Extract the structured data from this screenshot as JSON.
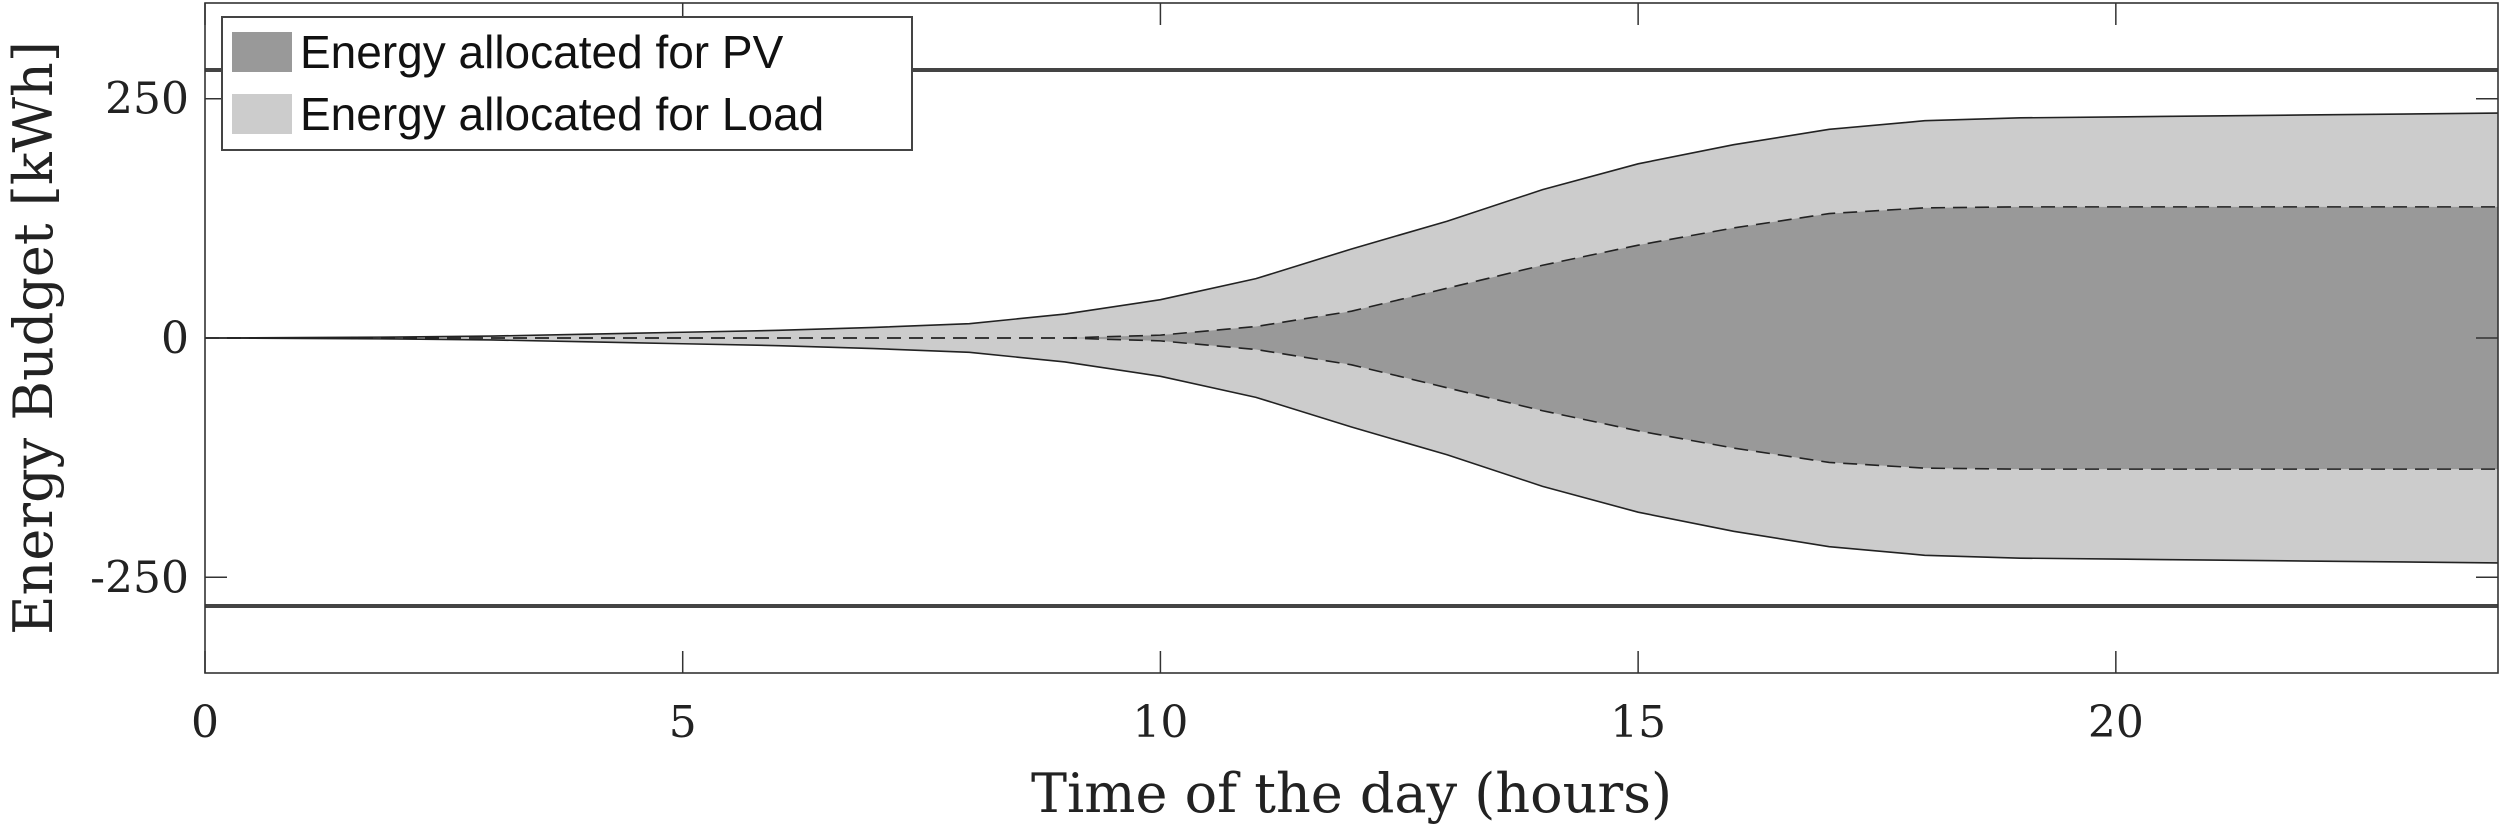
{
  "chart_data": {
    "type": "area",
    "xlabel": "Time of the day (hours)",
    "ylabel": "Energy Budget [kWh]",
    "xlim": [
      0,
      24
    ],
    "ylim": [
      -350,
      350
    ],
    "xticks": [
      0,
      5,
      10,
      15,
      20
    ],
    "yticks": [
      -250,
      0,
      250
    ],
    "ytick_labels": [
      "-250",
      "0",
      "250"
    ],
    "legend_position": "top-left",
    "limit_lines": [
      280,
      -280
    ],
    "x": [
      0,
      1,
      2,
      3,
      4,
      5,
      6,
      7,
      8,
      9,
      10,
      11,
      12,
      13,
      14,
      15,
      16,
      17,
      18,
      19,
      20,
      21,
      22,
      23,
      24
    ],
    "series": [
      {
        "name": "Energy allocated for PV",
        "color": "#999999",
        "upper": [
          0,
          0,
          0,
          0,
          0,
          0,
          0,
          0,
          0,
          0,
          3,
          12,
          28,
          52,
          76,
          97,
          115,
          130,
          136,
          137,
          137,
          137,
          137,
          137,
          137
        ]
      },
      {
        "name": "Energy allocated for Load",
        "color": "#cccccc",
        "upper": [
          0,
          0.5,
          1,
          2,
          4,
          6,
          8,
          11,
          15,
          25,
          40,
          62,
          93,
          122,
          155,
          182,
          202,
          218,
          227,
          230,
          231,
          232,
          233,
          234,
          235
        ]
      }
    ]
  }
}
